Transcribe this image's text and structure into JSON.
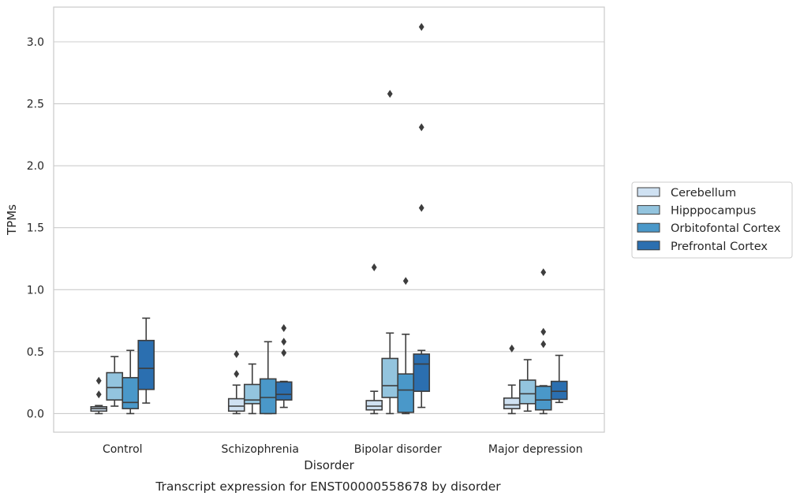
{
  "chart_data": {
    "type": "box",
    "xlabel": "Disorder",
    "ylabel": "TPMs",
    "caption": "Transcript expression for ENST00000558678 by disorder",
    "categories": [
      "Control",
      "Schizophrenia",
      "Bipolar disorder",
      "Major depression"
    ],
    "ylim": [
      -0.15,
      3.28
    ],
    "yticks": [
      0.0,
      0.5,
      1.0,
      1.5,
      2.0,
      2.5,
      3.0
    ],
    "ytick_labels": [
      "0.0",
      "0.5",
      "1.0",
      "1.5",
      "2.0",
      "2.5",
      "3.0"
    ],
    "grid": "horizontal",
    "legend_position": "right",
    "series": [
      {
        "name": "Cerebellum",
        "color": "#cfe1f2",
        "boxes": [
          {
            "whisker_low": 0.0,
            "q1": 0.02,
            "median": 0.04,
            "q3": 0.055,
            "whisker_high": 0.065,
            "outliers": [
              0.155,
              0.265
            ]
          },
          {
            "whisker_low": 0.0,
            "q1": 0.02,
            "median": 0.06,
            "q3": 0.12,
            "whisker_high": 0.23,
            "outliers": [
              0.32,
              0.48
            ]
          },
          {
            "whisker_low": 0.0,
            "q1": 0.03,
            "median": 0.06,
            "q3": 0.105,
            "whisker_high": 0.18,
            "outliers": [
              1.18
            ]
          },
          {
            "whisker_low": 0.0,
            "q1": 0.04,
            "median": 0.07,
            "q3": 0.125,
            "whisker_high": 0.23,
            "outliers": [
              0.525
            ]
          }
        ]
      },
      {
        "name": "Hipppocampus",
        "color": "#93c4de",
        "boxes": [
          {
            "whisker_low": 0.06,
            "q1": 0.11,
            "median": 0.21,
            "q3": 0.33,
            "whisker_high": 0.46,
            "outliers": []
          },
          {
            "whisker_low": 0.0,
            "q1": 0.08,
            "median": 0.11,
            "q3": 0.235,
            "whisker_high": 0.4,
            "outliers": []
          },
          {
            "whisker_low": 0.0,
            "q1": 0.13,
            "median": 0.225,
            "q3": 0.445,
            "whisker_high": 0.65,
            "outliers": [
              2.58
            ]
          },
          {
            "whisker_low": 0.02,
            "q1": 0.08,
            "median": 0.16,
            "q3": 0.27,
            "whisker_high": 0.435,
            "outliers": []
          }
        ]
      },
      {
        "name": "Orbitofontal Cortex",
        "color": "#4a98c9",
        "boxes": [
          {
            "whisker_low": 0.0,
            "q1": 0.04,
            "median": 0.09,
            "q3": 0.29,
            "whisker_high": 0.51,
            "outliers": []
          },
          {
            "whisker_low": 0.0,
            "q1": 0.0,
            "median": 0.13,
            "q3": 0.28,
            "whisker_high": 0.58,
            "outliers": []
          },
          {
            "whisker_low": 0.0,
            "q1": 0.01,
            "median": 0.19,
            "q3": 0.32,
            "whisker_high": 0.64,
            "outliers": [
              1.07
            ]
          },
          {
            "whisker_low": 0.0,
            "q1": 0.03,
            "median": 0.11,
            "q3": 0.22,
            "whisker_high": 0.225,
            "outliers": [
              0.56,
              0.66,
              1.14
            ]
          }
        ]
      },
      {
        "name": "Prefrontal Cortex",
        "color": "#2b6fb0",
        "boxes": [
          {
            "whisker_low": 0.085,
            "q1": 0.195,
            "median": 0.365,
            "q3": 0.59,
            "whisker_high": 0.77,
            "outliers": []
          },
          {
            "whisker_low": 0.05,
            "q1": 0.11,
            "median": 0.155,
            "q3": 0.255,
            "whisker_high": 0.26,
            "outliers": [
              0.49,
              0.58,
              0.69
            ]
          },
          {
            "whisker_low": 0.05,
            "q1": 0.18,
            "median": 0.4,
            "q3": 0.48,
            "whisker_high": 0.51,
            "outliers": [
              1.66,
              2.31,
              3.12
            ]
          },
          {
            "whisker_low": 0.09,
            "q1": 0.115,
            "median": 0.18,
            "q3": 0.26,
            "whisker_high": 0.47,
            "outliers": []
          }
        ]
      }
    ]
  }
}
